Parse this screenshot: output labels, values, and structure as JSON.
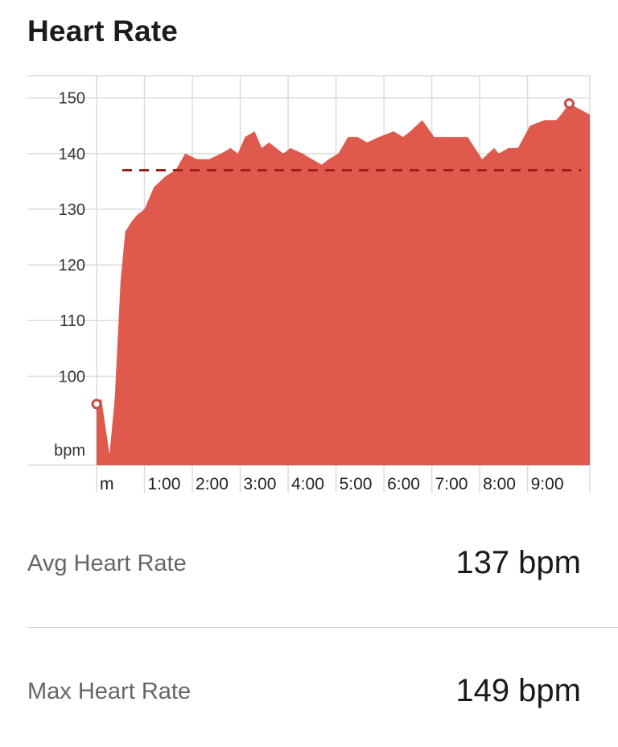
{
  "title": "Heart Rate",
  "colors": {
    "area": "#df5a4d",
    "avg_line": "#9a231c",
    "grid": "#dcdcdc",
    "marker": "#c44b44"
  },
  "stats": [
    {
      "label": "Avg Heart Rate",
      "value": "137 bpm"
    },
    {
      "label": "Max Heart Rate",
      "value": "149 bpm"
    }
  ],
  "chart_data": {
    "type": "area",
    "ylabel": "bpm",
    "ylim": [
      84,
      154
    ],
    "xlim": [
      0,
      10.3
    ],
    "y_ticks": [
      100,
      110,
      120,
      130,
      140,
      150
    ],
    "x_ticks": [
      {
        "x": 0,
        "label": "m"
      },
      {
        "x": 1,
        "label": "1:00"
      },
      {
        "x": 2,
        "label": "2:00"
      },
      {
        "x": 3,
        "label": "3:00"
      },
      {
        "x": 4,
        "label": "4:00"
      },
      {
        "x": 5,
        "label": "5:00"
      },
      {
        "x": 6,
        "label": "6:00"
      },
      {
        "x": 7,
        "label": "7:00"
      },
      {
        "x": 8,
        "label": "8:00"
      },
      {
        "x": 9,
        "label": "9:00"
      }
    ],
    "avg_line": 137,
    "grid": true,
    "series": [
      {
        "x": [
          0,
          0.1,
          0.15,
          0.27,
          0.38,
          0.5,
          0.6,
          0.75,
          0.85,
          1.0,
          1.2,
          1.45,
          1.65,
          1.85,
          2.1,
          2.35,
          2.6,
          2.8,
          2.95,
          3.1,
          3.3,
          3.45,
          3.6,
          3.75,
          3.9,
          4.05,
          4.3,
          4.5,
          4.7,
          4.85,
          5.05,
          5.25,
          5.45,
          5.65,
          5.9,
          6.2,
          6.4,
          6.55,
          6.8,
          7.05,
          7.35,
          7.75,
          8.05,
          8.3,
          8.4,
          8.6,
          8.8,
          9.05,
          9.35,
          9.6,
          9.7,
          9.87
        ],
        "y": [
          95,
          96,
          93,
          86,
          96,
          117,
          126,
          128,
          129,
          130,
          134,
          136,
          137,
          140,
          139,
          139,
          140,
          141,
          140,
          143,
          144,
          141,
          142,
          141,
          140,
          141,
          140,
          139,
          138,
          139,
          140,
          143,
          143,
          142,
          143,
          144,
          143,
          144,
          146,
          143,
          143,
          143,
          139,
          141,
          140,
          141,
          141,
          145,
          146,
          146,
          147,
          149
        ]
      }
    ],
    "markers": [
      {
        "x": 0,
        "y": 95
      },
      {
        "x": 9.87,
        "y": 149
      }
    ]
  }
}
